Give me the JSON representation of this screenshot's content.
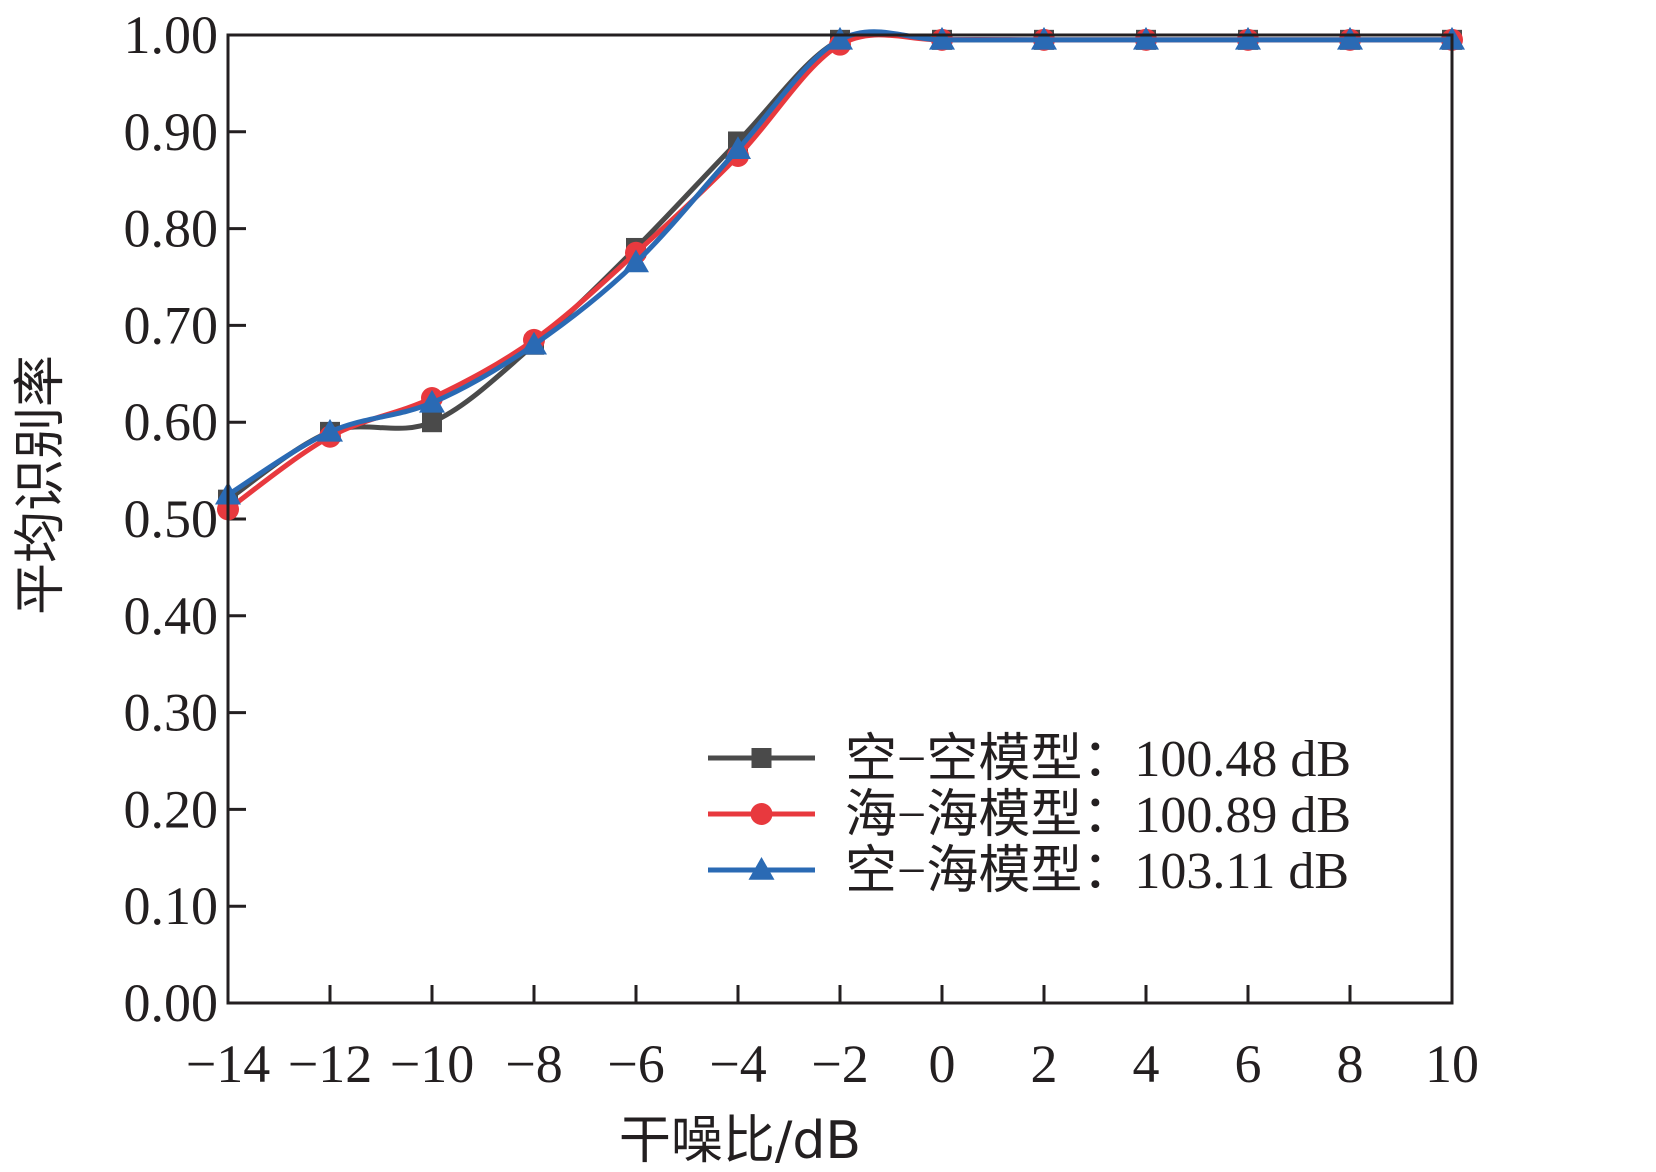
{
  "chart_data": {
    "type": "line",
    "xlabel": "干噪比/dB",
    "ylabel": "平均识别率",
    "x": [
      -14,
      -12,
      -10,
      -8,
      -6,
      -4,
      -2,
      0,
      2,
      4,
      6,
      8,
      10
    ],
    "xlim": [
      -14,
      10
    ],
    "ylim": [
      0,
      1
    ],
    "xticks": [
      -14,
      -12,
      -10,
      -8,
      -6,
      -4,
      -2,
      0,
      2,
      4,
      6,
      8,
      10
    ],
    "xtick_labels": [
      "−14",
      "−12",
      "−10",
      "−8",
      "−6",
      "−4",
      "−2",
      "0",
      "2",
      "4",
      "6",
      "8",
      "10"
    ],
    "yticks": [
      0,
      0.1,
      0.2,
      0.3,
      0.4,
      0.5,
      0.6,
      0.7,
      0.8,
      0.9,
      1.0
    ],
    "ytick_labels": [
      "0.00",
      "0.10",
      "0.20",
      "0.30",
      "0.40",
      "0.50",
      "0.60",
      "0.70",
      "0.80",
      "0.90",
      "1.00"
    ],
    "grid": false,
    "legend_position": "lower-right",
    "series": [
      {
        "name": "空−空模型：100.48 dB",
        "color": "#4a4a4a",
        "marker": "square",
        "values": [
          0.52,
          0.59,
          0.6,
          0.68,
          0.78,
          0.89,
          0.995,
          0.995,
          0.995,
          0.995,
          0.995,
          0.995,
          0.995
        ]
      },
      {
        "name": "海−海模型：100.89 dB",
        "color": "#e8393e",
        "marker": "circle",
        "values": [
          0.51,
          0.585,
          0.625,
          0.685,
          0.775,
          0.875,
          0.99,
          0.995,
          0.995,
          0.995,
          0.995,
          0.995,
          0.995
        ]
      },
      {
        "name": "空−海模型：103.11 dB",
        "color": "#2a6ab4",
        "marker": "triangle",
        "values": [
          0.525,
          0.59,
          0.62,
          0.68,
          0.765,
          0.882,
          0.995,
          0.995,
          0.995,
          0.995,
          0.995,
          0.995,
          0.995
        ]
      }
    ]
  }
}
